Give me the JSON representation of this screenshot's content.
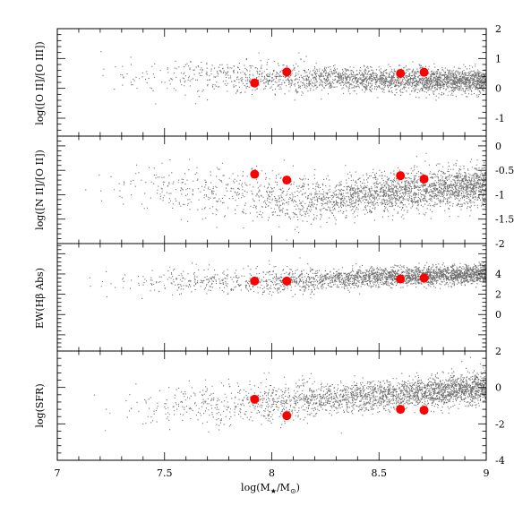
{
  "chart_data": [
    {
      "type": "scatter",
      "panel": "oiii_ratio",
      "ylabel": "log([O II]/[O III])",
      "xlim": [
        7,
        9
      ],
      "ylim": [
        -1.6,
        2.0
      ],
      "y_ticks_labeled": [
        -1,
        0,
        1,
        2
      ],
      "y_tick_labels": [
        "-1",
        "0",
        "1",
        "2"
      ],
      "tick_label_side": "right",
      "points": {
        "x": [
          7.92,
          8.07,
          8.6,
          8.71
        ],
        "y": [
          0.18,
          0.55,
          0.5,
          0.54
        ]
      },
      "background": {
        "description": "grey galaxy sample",
        "trend": [
          [
            7.1,
            0.52
          ],
          [
            8.0,
            0.35
          ],
          [
            9.0,
            0.25
          ]
        ],
        "spread": 0.22,
        "color": "#6e6e6e"
      }
    },
    {
      "type": "scatter",
      "panel": "nii_ratio",
      "ylabel": "log([N II]/[O II])",
      "xlim": [
        7,
        9
      ],
      "ylim": [
        -2.0,
        0.2
      ],
      "y_ticks_labeled": [
        -2,
        -1.5,
        -1,
        -0.5,
        0
      ],
      "y_tick_labels": [
        "-2",
        "-1.5",
        "-1",
        "-0.5",
        "0"
      ],
      "tick_label_side": "right",
      "points": {
        "x": [
          7.92,
          8.07,
          8.6,
          8.71
        ],
        "y": [
          -0.58,
          -0.7,
          -0.61,
          -0.68
        ]
      },
      "background": {
        "description": "grey galaxy sample",
        "trend": [
          [
            7.1,
            -0.75
          ],
          [
            8.2,
            -1.1
          ],
          [
            9.0,
            -0.78
          ]
        ],
        "spread": 0.22,
        "color": "#6e6e6e"
      }
    },
    {
      "type": "scatter",
      "panel": "ew_hbeta",
      "ylabel": "EW(Hβ Abs)",
      "xlim": [
        7,
        9
      ],
      "ylim": [
        -3.6,
        7.0
      ],
      "y_ticks_labeled": [
        0,
        2,
        4
      ],
      "y_tick_labels": [
        "0",
        "2",
        "4"
      ],
      "tick_label_side": "right",
      "points": {
        "x": [
          7.92,
          8.07,
          8.6,
          8.71
        ],
        "y": [
          3.3,
          3.3,
          3.5,
          3.6
        ]
      },
      "background": {
        "description": "grey galaxy sample",
        "trend": [
          [
            7.1,
            3.2
          ],
          [
            8.0,
            3.3
          ],
          [
            9.0,
            4.1
          ]
        ],
        "spread": 0.5,
        "color": "#6e6e6e"
      }
    },
    {
      "type": "scatter",
      "panel": "sfr",
      "ylabel": "log(SFR)",
      "xlabel": "log(M*/M⊙)",
      "xlim": [
        7,
        9
      ],
      "ylim": [
        -4,
        2
      ],
      "x_ticks_labeled": [
        7,
        7.5,
        8,
        8.5,
        9
      ],
      "x_tick_labels": [
        "7",
        "7.5",
        "8",
        "8.5",
        "9"
      ],
      "y_ticks_labeled": [
        -4,
        -2,
        0,
        2
      ],
      "y_tick_labels": [
        "-4",
        "-2",
        "0",
        "2"
      ],
      "tick_label_side": "right",
      "points": {
        "x": [
          7.92,
          8.07,
          8.6,
          8.71
        ],
        "y": [
          -0.65,
          -1.55,
          -1.2,
          -1.25
        ]
      },
      "background": {
        "description": "grey galaxy sample",
        "trend": [
          [
            7.1,
            -1.3
          ],
          [
            8.0,
            -0.8
          ],
          [
            9.0,
            0.0
          ]
        ],
        "spread": 0.45,
        "color": "#6e6e6e"
      }
    }
  ],
  "colors": {
    "points": "#ff0000",
    "background": "#6e6e6e",
    "axes": "#000000"
  }
}
